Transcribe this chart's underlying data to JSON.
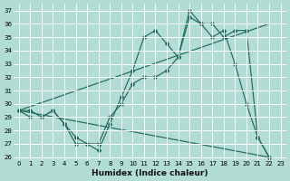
{
  "xlabel": "Humidex (Indice chaleur)",
  "bg_color": "#b2ddd4",
  "grid_color": "#ffffff",
  "line_color": "#1f6b5e",
  "xlim": [
    -0.5,
    23.5
  ],
  "ylim": [
    25.8,
    37.5
  ],
  "yticks": [
    26,
    27,
    28,
    29,
    30,
    31,
    32,
    33,
    34,
    35,
    36,
    37
  ],
  "xticks": [
    0,
    1,
    2,
    3,
    4,
    5,
    6,
    7,
    8,
    9,
    10,
    11,
    12,
    13,
    14,
    15,
    16,
    17,
    18,
    19,
    20,
    21,
    22,
    23
  ],
  "line1_x": [
    0,
    1,
    2,
    3,
    4,
    5,
    6,
    7,
    8,
    9,
    10,
    11,
    12,
    13,
    14,
    15,
    16,
    17,
    18,
    19,
    20,
    21,
    22
  ],
  "line1_y": [
    29.5,
    29.5,
    29.0,
    29.5,
    28.5,
    27.0,
    27.0,
    26.5,
    28.5,
    30.5,
    32.5,
    35.0,
    35.5,
    34.5,
    33.5,
    37.0,
    36.0,
    36.0,
    35.0,
    35.5,
    35.5,
    27.5,
    26.0
  ],
  "line2_x": [
    0,
    22
  ],
  "line2_y": [
    29.5,
    36.0
  ],
  "line3_x": [
    0,
    22
  ],
  "line3_y": [
    29.5,
    26.0
  ],
  "line4_x": [
    0,
    1,
    2,
    3,
    4,
    5,
    6,
    7,
    8,
    9,
    10,
    11,
    12,
    13,
    14,
    15,
    16,
    17,
    18,
    19,
    20,
    21,
    22
  ],
  "line4_y": [
    29.5,
    29.0,
    29.0,
    29.5,
    28.5,
    27.5,
    27.0,
    27.0,
    29.0,
    30.0,
    31.5,
    32.0,
    32.0,
    32.5,
    33.5,
    36.5,
    36.0,
    35.0,
    35.5,
    33.0,
    30.0,
    27.5,
    26.0
  ]
}
